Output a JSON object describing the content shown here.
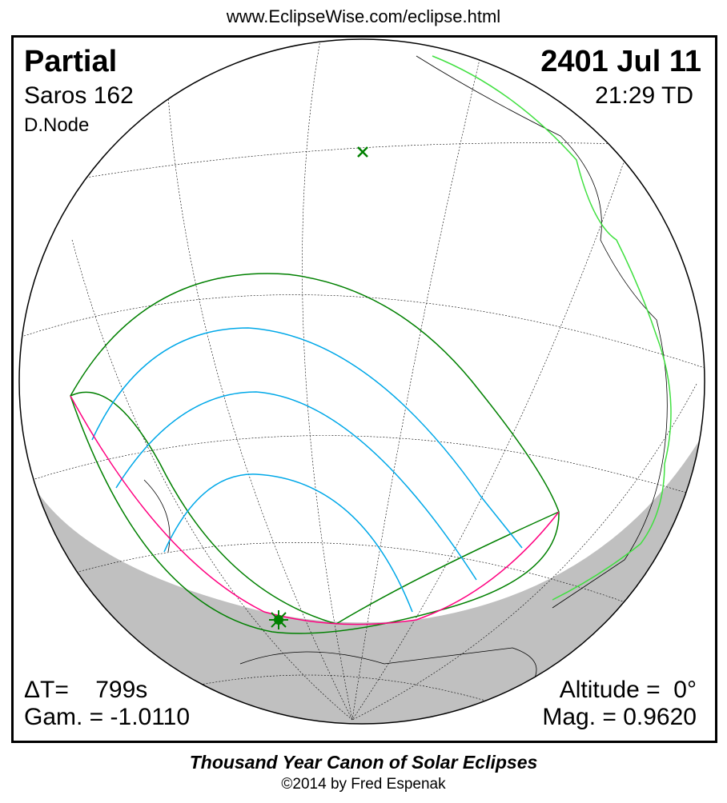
{
  "header": {
    "url": "www.EclipseWise.com/eclipse.html"
  },
  "eclipse": {
    "type": "Partial",
    "saros": "Saros 162",
    "node": "D.Node",
    "date": "2401 Jul 11",
    "time": "21:29 TD"
  },
  "parameters": {
    "delta_t": "ΔT=    799s",
    "gamma": "Gam. = -1.0110",
    "altitude": "Altitude =  0°",
    "magnitude": "Mag. = 0.9620"
  },
  "footer": {
    "canon": "Thousand Year Canon of Solar Eclipses",
    "copyright": "©2014 by Fred Espenak"
  },
  "colors": {
    "penumbra_limits": "#008000",
    "magnitude_curves": "#00a8e8",
    "rise_set_curve": "#ff0080",
    "night": "#c0c0c0",
    "coastlines_highlight": "#40e040"
  },
  "markers": {
    "greatest_eclipse": "star-icon",
    "subsolar_point": "x-icon"
  }
}
